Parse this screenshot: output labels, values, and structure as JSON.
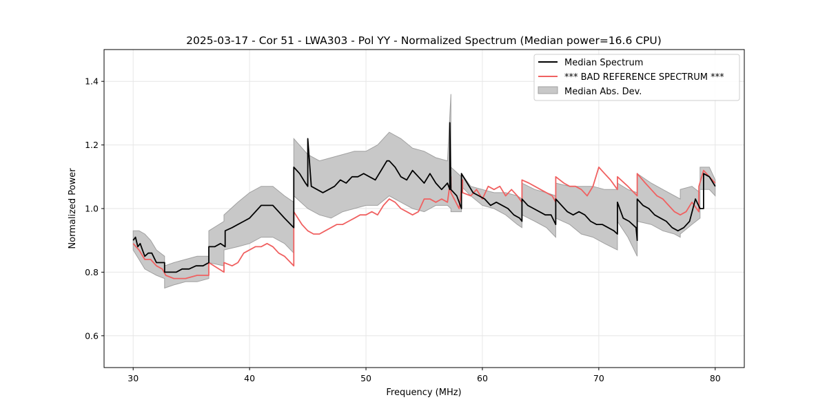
{
  "chart_data": {
    "type": "line",
    "title": "2025-03-17 - Cor 51 - LWA303 - Pol YY - Normalized Spectrum (Median power=16.6 CPU)",
    "xlabel": "Frequency (MHz)",
    "ylabel": "Normalized Power",
    "xlim": [
      27.5,
      82.5
    ],
    "ylim": [
      0.5,
      1.5
    ],
    "xticks": [
      30,
      40,
      50,
      60,
      70,
      80
    ],
    "yticks": [
      0.6,
      0.8,
      1.0,
      1.2,
      1.4
    ],
    "xtick_labels": [
      "30",
      "40",
      "50",
      "60",
      "70",
      "80"
    ],
    "ytick_labels": [
      "0.6",
      "0.8",
      "1.0",
      "1.2",
      "1.4"
    ],
    "grid": true,
    "legend_position": "top-right",
    "colors": {
      "median": "#000000",
      "reference": "#f06060",
      "mad_fill": "#c8c8c8",
      "mad_edge": "#a0a0a0"
    },
    "series": [
      {
        "name": "Median Spectrum",
        "x": [
          30.0,
          30.2,
          30.4,
          30.6,
          30.8,
          31.0,
          31.3,
          31.6,
          32.0,
          32.4,
          32.7,
          32.7,
          33.2,
          33.7,
          34.2,
          34.8,
          35.4,
          36.0,
          36.5,
          36.5,
          37.0,
          37.5,
          37.9,
          37.9,
          38.5,
          39.0,
          39.5,
          40.0,
          40.5,
          41.0,
          41.5,
          42.0,
          42.5,
          43.0,
          43.8,
          43.8,
          44.3,
          44.8,
          45.0,
          45.0,
          45.3,
          45.3,
          45.8,
          46.3,
          46.8,
          47.3,
          47.8,
          48.3,
          48.8,
          49.3,
          49.8,
          50.3,
          50.8,
          51.3,
          51.8,
          52.0,
          52.5,
          53.0,
          53.5,
          54.0,
          54.5,
          55.0,
          55.5,
          56.0,
          56.5,
          57.0,
          57.2,
          57.2,
          57.3,
          57.3,
          57.8,
          58.2,
          58.2,
          58.7,
          59.2,
          59.7,
          60.2,
          60.7,
          61.2,
          61.7,
          62.2,
          62.7,
          63.2,
          63.4,
          63.4,
          63.9,
          64.4,
          64.9,
          65.4,
          65.9,
          66.3,
          66.3,
          66.8,
          67.3,
          67.8,
          68.3,
          68.8,
          69.3,
          69.8,
          70.3,
          70.8,
          71.3,
          71.6,
          71.6,
          72.1,
          72.6,
          73.2,
          73.3,
          73.3,
          73.8,
          74.3,
          74.8,
          75.3,
          75.8,
          76.3,
          76.8,
          77.3,
          77.8,
          78.3,
          78.7,
          79.0,
          79.0,
          79.5,
          80.0
        ],
        "values": [
          0.9,
          0.91,
          0.88,
          0.89,
          0.87,
          0.85,
          0.86,
          0.86,
          0.83,
          0.83,
          0.83,
          0.8,
          0.8,
          0.8,
          0.81,
          0.81,
          0.82,
          0.82,
          0.83,
          0.88,
          0.88,
          0.89,
          0.88,
          0.93,
          0.94,
          0.95,
          0.96,
          0.97,
          0.99,
          1.01,
          1.01,
          1.01,
          0.99,
          0.97,
          0.94,
          1.13,
          1.11,
          1.08,
          1.07,
          1.22,
          1.07,
          1.07,
          1.06,
          1.05,
          1.06,
          1.07,
          1.09,
          1.08,
          1.1,
          1.1,
          1.11,
          1.1,
          1.09,
          1.12,
          1.15,
          1.15,
          1.13,
          1.1,
          1.09,
          1.12,
          1.1,
          1.08,
          1.11,
          1.08,
          1.06,
          1.08,
          1.06,
          1.27,
          1.06,
          1.06,
          1.04,
          1.0,
          1.11,
          1.08,
          1.05,
          1.04,
          1.03,
          1.01,
          1.02,
          1.01,
          1.0,
          0.98,
          0.97,
          0.96,
          1.03,
          1.01,
          1.0,
          0.99,
          0.98,
          0.98,
          0.95,
          1.03,
          1.01,
          0.99,
          0.98,
          0.99,
          0.98,
          0.96,
          0.95,
          0.95,
          0.94,
          0.93,
          0.92,
          1.02,
          0.97,
          0.96,
          0.94,
          0.9,
          1.03,
          1.01,
          1.0,
          0.98,
          0.97,
          0.96,
          0.94,
          0.93,
          0.94,
          0.96,
          1.03,
          1.0,
          1.0,
          1.11,
          1.1,
          1.07
        ]
      },
      {
        "name": "*** BAD REFERENCE SPECTRUM ***",
        "x": [
          30.0,
          30.5,
          31.0,
          31.5,
          32.0,
          32.5,
          32.8,
          33.5,
          34.5,
          35.5,
          36.5,
          36.5,
          37.8,
          37.8,
          38.5,
          39.0,
          39.5,
          40.0,
          40.5,
          41.0,
          41.5,
          42.0,
          42.5,
          43.0,
          43.8,
          43.8,
          44.5,
          45.0,
          45.5,
          46.0,
          46.5,
          47.0,
          47.5,
          48.0,
          48.5,
          49.0,
          49.5,
          50.0,
          50.5,
          51.0,
          51.5,
          52.0,
          52.5,
          53.0,
          53.5,
          54.0,
          54.5,
          55.0,
          55.5,
          56.0,
          56.5,
          57.0,
          57.3,
          57.3,
          58.0,
          58.3,
          58.3,
          59.0,
          59.5,
          60.0,
          60.5,
          61.0,
          61.5,
          62.0,
          62.5,
          63.0,
          63.4,
          63.4,
          64.0,
          64.5,
          65.0,
          65.5,
          66.0,
          66.3,
          66.3,
          67.0,
          67.5,
          68.0,
          68.5,
          69.0,
          69.5,
          70.0,
          70.5,
          71.0,
          71.6,
          71.6,
          72.5,
          73.3,
          73.3,
          74.0,
          74.5,
          75.0,
          75.5,
          76.0,
          76.5,
          77.0,
          77.5,
          78.0,
          78.6,
          78.6,
          79.0,
          79.5,
          80.0
        ],
        "values": [
          0.89,
          0.87,
          0.84,
          0.84,
          0.82,
          0.81,
          0.79,
          0.78,
          0.78,
          0.79,
          0.79,
          0.83,
          0.8,
          0.83,
          0.82,
          0.83,
          0.86,
          0.87,
          0.88,
          0.88,
          0.89,
          0.88,
          0.86,
          0.85,
          0.82,
          0.99,
          0.95,
          0.93,
          0.92,
          0.92,
          0.93,
          0.94,
          0.95,
          0.95,
          0.96,
          0.97,
          0.98,
          0.98,
          0.99,
          0.98,
          1.01,
          1.03,
          1.02,
          1.0,
          0.99,
          0.98,
          0.99,
          1.03,
          1.03,
          1.02,
          1.03,
          1.02,
          1.1,
          1.05,
          1.0,
          1.09,
          1.05,
          1.04,
          1.06,
          1.03,
          1.07,
          1.06,
          1.07,
          1.04,
          1.06,
          1.04,
          1.02,
          1.09,
          1.08,
          1.07,
          1.06,
          1.05,
          1.04,
          1.02,
          1.1,
          1.08,
          1.07,
          1.07,
          1.06,
          1.04,
          1.07,
          1.13,
          1.11,
          1.09,
          1.06,
          1.1,
          1.07,
          1.04,
          1.11,
          1.08,
          1.06,
          1.04,
          1.03,
          1.01,
          0.99,
          0.98,
          0.99,
          1.02,
          0.99,
          1.07,
          1.12,
          1.1,
          1.08
        ]
      }
    ],
    "mad_band": {
      "name": "Median Abs. Dev.",
      "x": [
        30.0,
        30.5,
        31.0,
        31.5,
        32.0,
        32.7,
        32.7,
        33.5,
        34.5,
        35.5,
        36.5,
        36.5,
        37.8,
        37.8,
        39.0,
        40.0,
        41.0,
        42.0,
        43.0,
        43.8,
        43.8,
        45.0,
        46.0,
        47.0,
        48.0,
        49.0,
        50.0,
        51.0,
        52.0,
        53.0,
        54.0,
        55.0,
        56.0,
        57.0,
        57.3,
        57.3,
        58.2,
        58.2,
        59.0,
        60.0,
        61.0,
        62.0,
        63.0,
        63.4,
        63.4,
        64.5,
        65.5,
        66.3,
        66.3,
        67.5,
        68.5,
        69.5,
        70.5,
        71.6,
        71.6,
        72.5,
        73.3,
        73.3,
        74.5,
        75.5,
        76.5,
        77.0,
        77.0,
        78.0,
        78.7,
        78.7,
        79.5,
        80.0
      ],
      "upper": [
        0.93,
        0.93,
        0.92,
        0.9,
        0.87,
        0.85,
        0.82,
        0.83,
        0.84,
        0.85,
        0.85,
        0.93,
        0.96,
        0.98,
        1.02,
        1.05,
        1.07,
        1.07,
        1.04,
        1.02,
        1.22,
        1.17,
        1.15,
        1.16,
        1.17,
        1.18,
        1.18,
        1.2,
        1.24,
        1.22,
        1.19,
        1.18,
        1.16,
        1.15,
        1.36,
        1.13,
        1.1,
        1.11,
        1.07,
        1.06,
        1.05,
        1.05,
        1.04,
        1.03,
        1.08,
        1.06,
        1.05,
        1.04,
        1.08,
        1.07,
        1.07,
        1.07,
        1.06,
        1.06,
        1.08,
        1.06,
        1.05,
        1.11,
        1.08,
        1.06,
        1.04,
        1.03,
        1.06,
        1.07,
        1.05,
        1.13,
        1.13,
        1.09
      ],
      "lower": [
        0.87,
        0.84,
        0.81,
        0.8,
        0.79,
        0.78,
        0.75,
        0.76,
        0.77,
        0.77,
        0.78,
        0.83,
        0.82,
        0.87,
        0.88,
        0.89,
        0.91,
        0.91,
        0.89,
        0.86,
        1.04,
        1.0,
        0.98,
        0.97,
        0.99,
        1.0,
        1.01,
        1.01,
        1.04,
        1.02,
        1.0,
        0.99,
        1.01,
        1.01,
        1.0,
        0.99,
        0.99,
        1.07,
        1.04,
        1.01,
        1.0,
        0.98,
        0.95,
        0.94,
        0.98,
        0.96,
        0.94,
        0.91,
        0.97,
        0.95,
        0.92,
        0.91,
        0.89,
        0.87,
        0.96,
        0.91,
        0.85,
        0.96,
        0.95,
        0.93,
        0.92,
        0.91,
        0.92,
        0.95,
        0.97,
        1.06,
        1.06,
        1.04
      ]
    }
  }
}
